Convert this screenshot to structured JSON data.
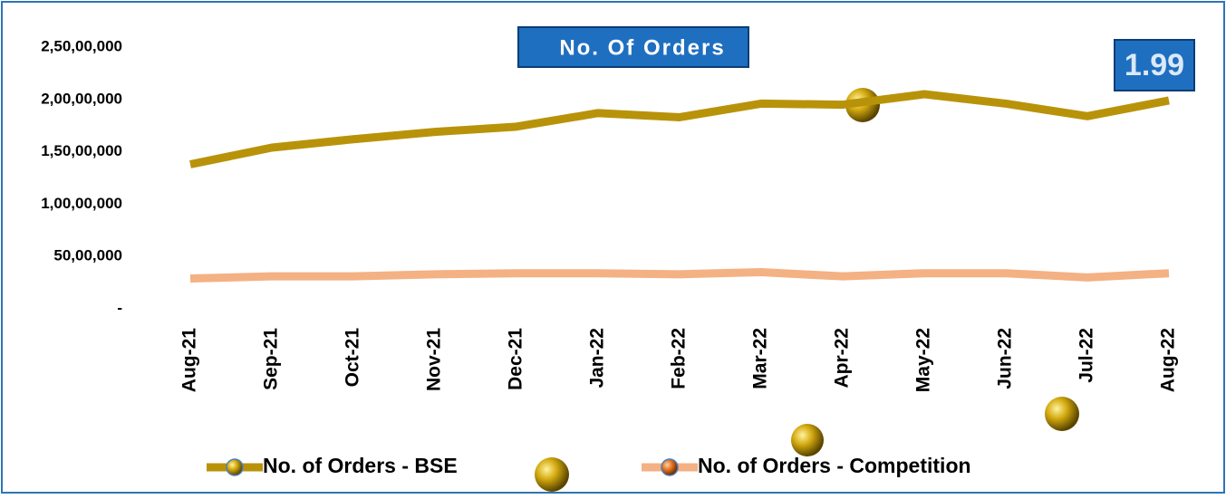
{
  "chart_data": {
    "type": "line",
    "title": "No. Of Orders",
    "badge": "1.99",
    "categories": [
      "Aug-21",
      "Sep-21",
      "Oct-21",
      "Nov-21",
      "Dec-21",
      "Jan-22",
      "Feb-22",
      "Mar-22",
      "Apr-22",
      "May-22",
      "Jun-22",
      "Jul-22",
      "Aug-22"
    ],
    "series": [
      {
        "name": "No. of Orders - BSE",
        "color": "#b8930a",
        "values": [
          13800000,
          15400000,
          16200000,
          16900000,
          17400000,
          18700000,
          18300000,
          19600000,
          19500000,
          20500000,
          19600000,
          18400000,
          19900000
        ]
      },
      {
        "name": "No. of Orders - Competition",
        "color": "#f4b183",
        "values": [
          2900000,
          3100000,
          3100000,
          3300000,
          3400000,
          3400000,
          3300000,
          3500000,
          3100000,
          3400000,
          3400000,
          3000000,
          3400000
        ]
      }
    ],
    "ylim": [
      0,
      25000000
    ],
    "yticks": [
      {
        "value": 0,
        "label": "-"
      },
      {
        "value": 5000000,
        "label": "50,00,000"
      },
      {
        "value": 10000000,
        "label": "1,00,00,000"
      },
      {
        "value": 15000000,
        "label": "1,50,00,000"
      },
      {
        "value": 20000000,
        "label": "2,00,00,000"
      },
      {
        "value": 25000000,
        "label": "2,50,00,000"
      }
    ],
    "grid": false
  }
}
